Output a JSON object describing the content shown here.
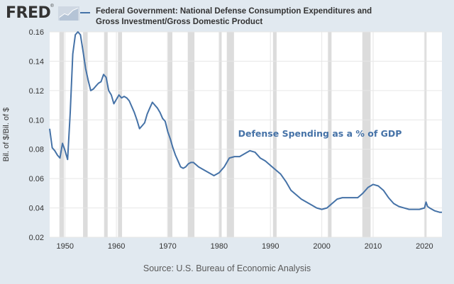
{
  "header": {
    "logo_text": "FRED",
    "logo_mark": "®",
    "logo_icon": "chart-line-icon",
    "legend_color": "#4572a7"
  },
  "source_note": "Source: U.S. Bureau of Economic Analysis",
  "chart_data": {
    "type": "line",
    "title": "Federal Government: National Defense Consumption Expenditures and Gross Investment/Gross Domestic Product",
    "xlabel": "",
    "ylabel": "Bil. of $/Bil. of $",
    "xlim": [
      1947,
      2023.4
    ],
    "ylim": [
      0.02,
      0.16
    ],
    "x_ticks": [
      1950,
      1960,
      1970,
      1980,
      1990,
      2000,
      2010,
      2020
    ],
    "y_ticks": [
      0.02,
      0.04,
      0.06,
      0.08,
      0.1,
      0.12,
      0.14,
      0.16
    ],
    "y_tick_labels": [
      "0.02",
      "0.04",
      "0.06",
      "0.08",
      "0.10",
      "0.12",
      "0.14",
      "0.16"
    ],
    "grid": true,
    "annotation": "Defense Spending as a % of GDP",
    "recessions": [
      [
        1948.9,
        1949.8
      ],
      [
        1953.5,
        1954.4
      ],
      [
        1957.6,
        1958.3
      ],
      [
        1960.3,
        1961.1
      ],
      [
        1969.9,
        1970.9
      ],
      [
        1973.9,
        1975.2
      ],
      [
        1980.0,
        1980.5
      ],
      [
        1981.5,
        1982.9
      ],
      [
        1990.5,
        1991.2
      ],
      [
        2001.2,
        2001.9
      ],
      [
        2007.9,
        2009.5
      ],
      [
        2020.1,
        2020.4
      ]
    ],
    "series": [
      {
        "name": "Federal Government: National Defense Consumption Expenditures and Gross Investment/Gross Domestic Product",
        "color": "#4572a7",
        "x": [
          1947.0,
          1947.5,
          1948.0,
          1948.5,
          1949.0,
          1949.5,
          1950.0,
          1950.5,
          1951.0,
          1951.5,
          1952.0,
          1952.5,
          1953.0,
          1953.5,
          1954.0,
          1954.5,
          1955.0,
          1955.5,
          1956.0,
          1956.5,
          1957.0,
          1957.5,
          1958.0,
          1958.5,
          1959.0,
          1959.5,
          1960.0,
          1960.5,
          1961.0,
          1961.5,
          1962.0,
          1962.5,
          1963.0,
          1963.5,
          1964.0,
          1964.5,
          1965.0,
          1965.5,
          1966.0,
          1966.5,
          1967.0,
          1967.5,
          1968.0,
          1968.5,
          1969.0,
          1969.5,
          1970.0,
          1970.5,
          1971.0,
          1971.5,
          1972.0,
          1972.5,
          1973.0,
          1973.5,
          1974.0,
          1974.5,
          1975.0,
          1976.0,
          1977.0,
          1978.0,
          1979.0,
          1980.0,
          1981.0,
          1982.0,
          1983.0,
          1984.0,
          1985.0,
          1986.0,
          1987.0,
          1988.0,
          1989.0,
          1990.0,
          1991.0,
          1992.0,
          1993.0,
          1994.0,
          1995.0,
          1996.0,
          1997.0,
          1998.0,
          1999.0,
          2000.0,
          2001.0,
          2002.0,
          2003.0,
          2004.0,
          2005.0,
          2006.0,
          2007.0,
          2008.0,
          2009.0,
          2010.0,
          2011.0,
          2012.0,
          2013.0,
          2014.0,
          2015.0,
          2016.0,
          2017.0,
          2018.0,
          2019.0,
          2020.0,
          2020.3,
          2020.6,
          2021.0,
          2022.0,
          2023.0,
          2023.4
        ],
        "values": [
          0.094,
          0.081,
          0.079,
          0.076,
          0.074,
          0.084,
          0.079,
          0.073,
          0.105,
          0.145,
          0.158,
          0.16,
          0.158,
          0.147,
          0.135,
          0.127,
          0.12,
          0.121,
          0.123,
          0.125,
          0.126,
          0.131,
          0.129,
          0.12,
          0.117,
          0.111,
          0.114,
          0.117,
          0.115,
          0.116,
          0.115,
          0.113,
          0.109,
          0.105,
          0.1,
          0.094,
          0.096,
          0.098,
          0.104,
          0.108,
          0.112,
          0.11,
          0.108,
          0.105,
          0.101,
          0.099,
          0.092,
          0.087,
          0.081,
          0.076,
          0.072,
          0.068,
          0.067,
          0.068,
          0.07,
          0.071,
          0.071,
          0.068,
          0.066,
          0.064,
          0.062,
          0.064,
          0.068,
          0.074,
          0.075,
          0.075,
          0.077,
          0.079,
          0.078,
          0.074,
          0.072,
          0.069,
          0.066,
          0.063,
          0.058,
          0.052,
          0.049,
          0.046,
          0.044,
          0.042,
          0.04,
          0.039,
          0.04,
          0.043,
          0.046,
          0.047,
          0.047,
          0.047,
          0.047,
          0.05,
          0.054,
          0.056,
          0.055,
          0.052,
          0.047,
          0.043,
          0.041,
          0.04,
          0.039,
          0.039,
          0.039,
          0.04,
          0.044,
          0.041,
          0.04,
          0.038,
          0.037,
          0.037
        ]
      }
    ]
  }
}
